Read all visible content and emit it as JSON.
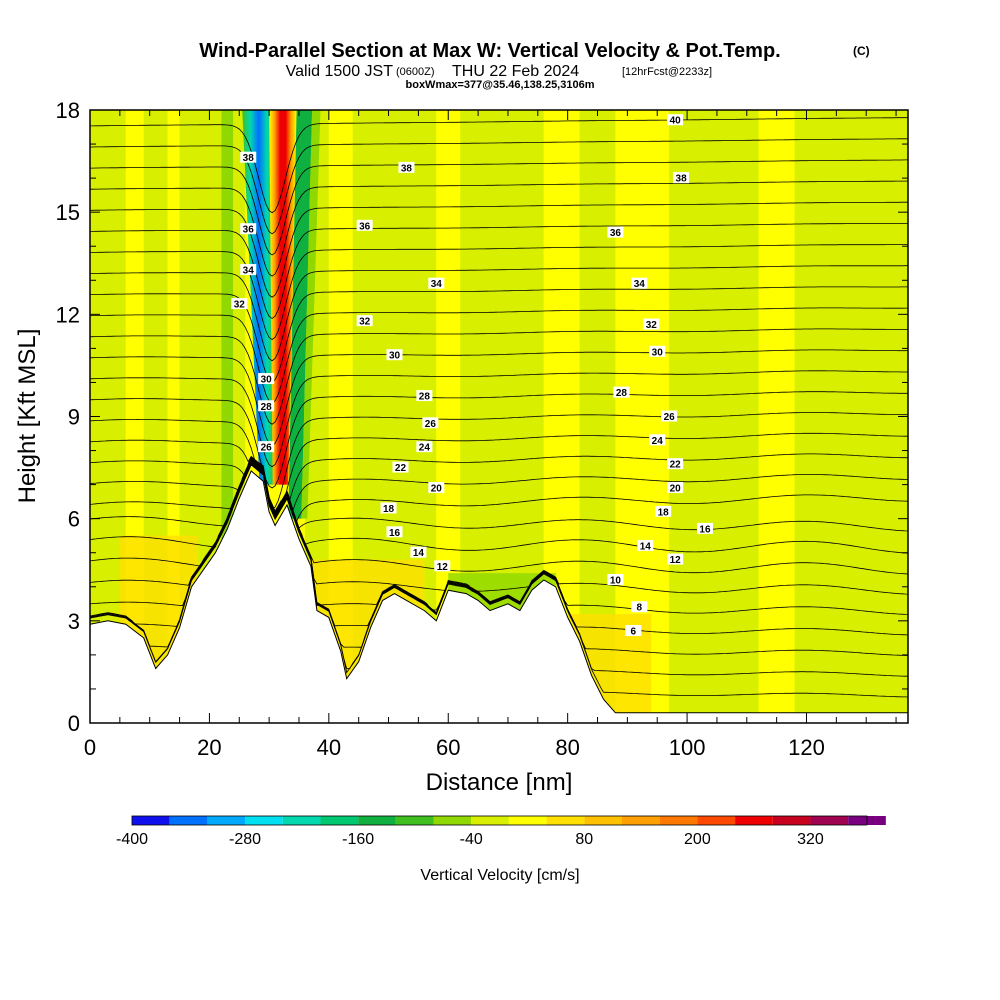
{
  "title": {
    "main": "Wind-Parallel Section at Max W: Vertical Velocity & Pot.Temp.",
    "mark": "(C)",
    "valid_prefix": "Valid 1500 JST",
    "valid_utc": "(0600Z)",
    "valid_date": "THU 22 Feb 2024",
    "forecast": "[12hrFcst@2233z]",
    "box": "boxWmax=377@35.46,138.25,3106m"
  },
  "chart_data": {
    "type": "heatmap",
    "xlabel": "Distance [nm]",
    "ylabel": "Height [Kft MSL]",
    "xlim": [
      0,
      137
    ],
    "ylim": [
      0,
      18
    ],
    "x_ticks": [
      0,
      20,
      40,
      60,
      80,
      100,
      120
    ],
    "y_ticks": [
      0,
      3,
      6,
      9,
      12,
      15,
      18
    ],
    "grid": false,
    "colorbar": {
      "label": "Vertical Velocity [cm/s]",
      "tick_labels": [
        "-400",
        "-280",
        "-160",
        "-40",
        "80",
        "200",
        "320"
      ],
      "tick_values": [
        -400,
        -280,
        -160,
        -40,
        80,
        200,
        320
      ],
      "range": [
        -400,
        380
      ],
      "step": 40,
      "colors": [
        "#1010ee",
        "#0070ff",
        "#00a8ff",
        "#00e0f0",
        "#00d8b0",
        "#00c870",
        "#10b040",
        "#40c020",
        "#90d800",
        "#d8f000",
        "#ffff00",
        "#ffe000",
        "#ffc000",
        "#ffa000",
        "#ff7800",
        "#ff4800",
        "#ee0000",
        "#c80020",
        "#a00050",
        "#780080"
      ],
      "placement": "bottom"
    },
    "terrain": [
      [
        0,
        2.9
      ],
      [
        3,
        3.0
      ],
      [
        6,
        2.9
      ],
      [
        9,
        2.5
      ],
      [
        11,
        1.6
      ],
      [
        13,
        2.0
      ],
      [
        15,
        2.8
      ],
      [
        17,
        4.0
      ],
      [
        19,
        4.5
      ],
      [
        21,
        5.0
      ],
      [
        23,
        5.7
      ],
      [
        25,
        6.6
      ],
      [
        27,
        7.4
      ],
      [
        29,
        7.1
      ],
      [
        30,
        6.2
      ],
      [
        31,
        5.8
      ],
      [
        33,
        6.4
      ],
      [
        35,
        5.4
      ],
      [
        37,
        4.6
      ],
      [
        38,
        3.3
      ],
      [
        40,
        3.1
      ],
      [
        42,
        2.1
      ],
      [
        43,
        1.3
      ],
      [
        45,
        1.8
      ],
      [
        47,
        2.8
      ],
      [
        49,
        3.6
      ],
      [
        51,
        3.8
      ],
      [
        53,
        3.6
      ],
      [
        56,
        3.3
      ],
      [
        58,
        3.0
      ],
      [
        60,
        3.9
      ],
      [
        63,
        3.8
      ],
      [
        65,
        3.6
      ],
      [
        67,
        3.3
      ],
      [
        70,
        3.5
      ],
      [
        72,
        3.3
      ],
      [
        74,
        3.9
      ],
      [
        76,
        4.2
      ],
      [
        78,
        4.0
      ],
      [
        80,
        3.1
      ],
      [
        82,
        2.4
      ],
      [
        84,
        1.4
      ],
      [
        86,
        0.7
      ],
      [
        88,
        0.3
      ],
      [
        137,
        0.3
      ]
    ],
    "potential_temperature_labels": [
      {
        "x": 26.5,
        "y": 16.6,
        "v": "38"
      },
      {
        "x": 26.5,
        "y": 14.5,
        "v": "36"
      },
      {
        "x": 26.5,
        "y": 13.3,
        "v": "34"
      },
      {
        "x": 25,
        "y": 12.3,
        "v": "32"
      },
      {
        "x": 29.5,
        "y": 10.1,
        "v": "30"
      },
      {
        "x": 29.5,
        "y": 9.3,
        "v": "28"
      },
      {
        "x": 29.5,
        "y": 8.1,
        "v": "26"
      },
      {
        "x": 53,
        "y": 16.3,
        "v": "38"
      },
      {
        "x": 46,
        "y": 14.6,
        "v": "36"
      },
      {
        "x": 58,
        "y": 12.9,
        "v": "34"
      },
      {
        "x": 46,
        "y": 11.8,
        "v": "32"
      },
      {
        "x": 51,
        "y": 10.8,
        "v": "30"
      },
      {
        "x": 56,
        "y": 9.6,
        "v": "28"
      },
      {
        "x": 57,
        "y": 8.8,
        "v": "26"
      },
      {
        "x": 56,
        "y": 8.1,
        "v": "24"
      },
      {
        "x": 52,
        "y": 7.5,
        "v": "22"
      },
      {
        "x": 58,
        "y": 6.9,
        "v": "20"
      },
      {
        "x": 50,
        "y": 6.3,
        "v": "18"
      },
      {
        "x": 51,
        "y": 5.6,
        "v": "16"
      },
      {
        "x": 55,
        "y": 5.0,
        "v": "14"
      },
      {
        "x": 59,
        "y": 4.6,
        "v": "12"
      },
      {
        "x": 98,
        "y": 17.7,
        "v": "40"
      },
      {
        "x": 99,
        "y": 16.0,
        "v": "38"
      },
      {
        "x": 88,
        "y": 14.4,
        "v": "36"
      },
      {
        "x": 92,
        "y": 12.9,
        "v": "34"
      },
      {
        "x": 94,
        "y": 11.7,
        "v": "32"
      },
      {
        "x": 95,
        "y": 10.9,
        "v": "30"
      },
      {
        "x": 89,
        "y": 9.7,
        "v": "28"
      },
      {
        "x": 97,
        "y": 9.0,
        "v": "26"
      },
      {
        "x": 95,
        "y": 8.3,
        "v": "24"
      },
      {
        "x": 98,
        "y": 7.6,
        "v": "22"
      },
      {
        "x": 98,
        "y": 6.9,
        "v": "20"
      },
      {
        "x": 96,
        "y": 6.2,
        "v": "18"
      },
      {
        "x": 103,
        "y": 5.7,
        "v": "16"
      },
      {
        "x": 93,
        "y": 5.2,
        "v": "14"
      },
      {
        "x": 98,
        "y": 4.8,
        "v": "12"
      },
      {
        "x": 88,
        "y": 4.2,
        "v": "10"
      },
      {
        "x": 92,
        "y": 3.4,
        "v": "8"
      },
      {
        "x": 91,
        "y": 2.7,
        "v": "6"
      }
    ],
    "updraft_max_cm_s": 377
  }
}
